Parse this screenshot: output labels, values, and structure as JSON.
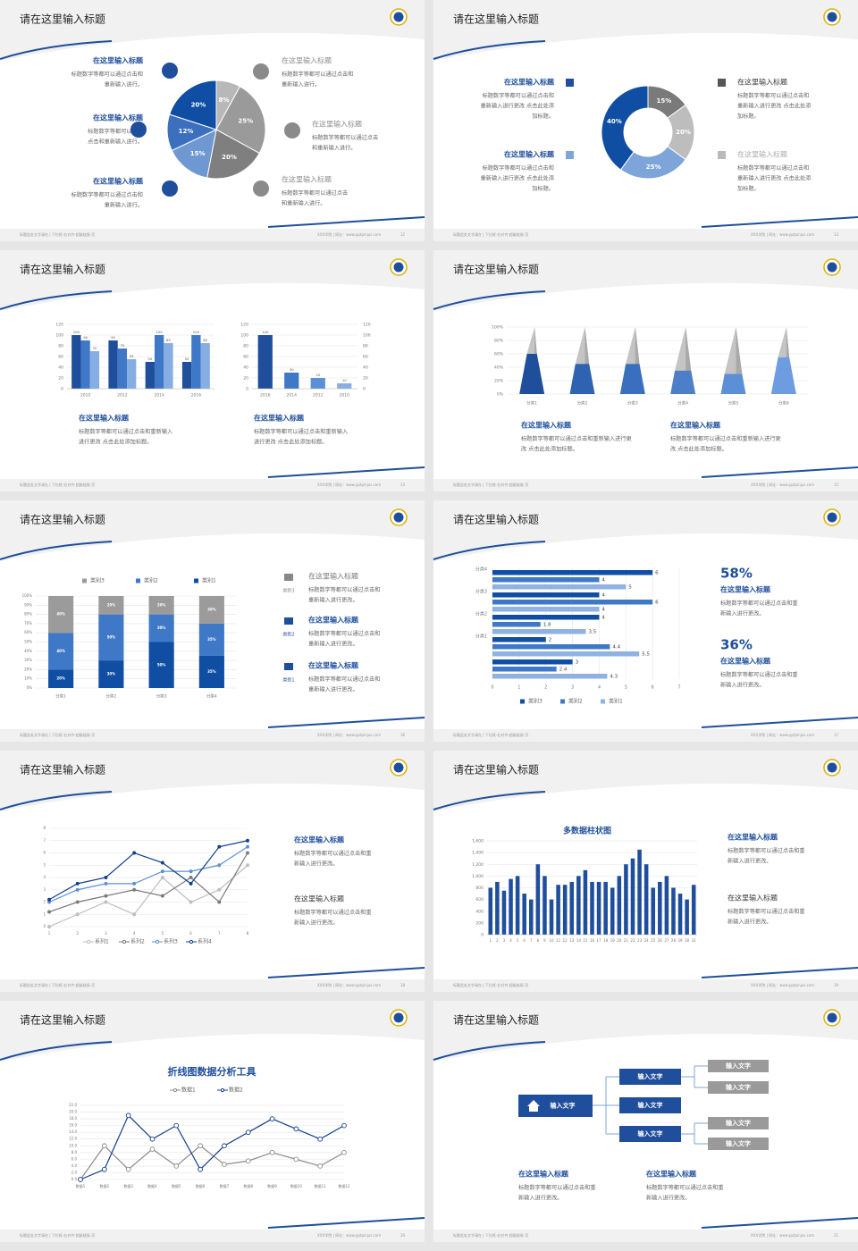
{
  "footer": {
    "left": "标题此处文字请在 | 下拉框-右对齐-超级链接-页",
    "right": "XXX学院 | 网址：www.pptpinjus.com"
  },
  "slides": [
    {
      "title": "请在这里输入标题",
      "page": "12",
      "items": [
        {
          "title": "在这里输入标题",
          "lines": [
            "标题数字等都可以通过点击和",
            "重新输入进行。"
          ]
        },
        {
          "title": "在这里输入标题",
          "lines": [
            "标题数字等都可以通过",
            "点击和重新输入进行。"
          ]
        },
        {
          "title": "在这里输入标题",
          "lines": [
            "标题数字等都可以通过点击和",
            "重新输入进行。"
          ]
        },
        {
          "title": "在这里输入标题",
          "lines": [
            "标题数字等都可以通过点击和",
            "重新输入进行。"
          ]
        },
        {
          "title": "在这里输入标题",
          "lines": [
            "标题数字等都可以通过点击",
            "和重新输入进行。"
          ]
        },
        {
          "title": "在这里输入标题",
          "lines": [
            "标题数字等都可以通过点击",
            "和重新输入进行。"
          ]
        }
      ]
    },
    {
      "title": "请在这里输入标题",
      "page": "13",
      "items": [
        {
          "title": "在这里输入标题",
          "lines": [
            "标题数字等都可以通过点击和",
            "重新输入进行更改 点击此处添",
            "加标题。"
          ]
        },
        {
          "title": "在这里输入标题",
          "lines": [
            "标题数字等都可以通过点击和",
            "重新输入进行更改 点击此处添",
            "加标题。"
          ]
        },
        {
          "title": "在这里输入标题",
          "lines": [
            "标题数字等都可以通过点击和",
            "重新输入进行更改 点击此处添",
            "加标题。"
          ]
        },
        {
          "title": "在这里输入标题",
          "lines": [
            "标题数字等都可以通过点击和",
            "重新输入进行更改 点击此处添",
            "加标题。"
          ]
        }
      ]
    },
    {
      "title": "请在这里输入标题",
      "page": "14",
      "items": [
        {
          "title": "在这里输入标题",
          "lines": [
            "标题数字等都可以通过点击和重新输入",
            "进行更改 点击此处添加标题。"
          ]
        },
        {
          "title": "在这里输入标题",
          "lines": [
            "标题数字等都可以通过点击和重新输入",
            "进行更改 点击此处添加标题。"
          ]
        }
      ]
    },
    {
      "title": "请在这里输入标题",
      "page": "15",
      "items": [
        {
          "title": "在这里输入标题",
          "lines": [
            "标题数字等都可以通过点击和重新输入进行更",
            "改 点击此处添加标题。"
          ]
        },
        {
          "title": "在这里输入标题",
          "lines": [
            "标题数字等都可以通过点击和重新输入进行更",
            "改 点击此处添加标题。"
          ]
        }
      ]
    },
    {
      "title": "请在这里输入标题",
      "page": "16",
      "items": [
        {
          "label": "类别3",
          "title": "在这里输入标题",
          "lines": [
            "标题数字等都可以通过点击和",
            "重新输入进行更改。"
          ]
        },
        {
          "label": "类别2",
          "title": "在这里输入标题",
          "lines": [
            "标题数字等都可以通过点击和",
            "重新输入进行更改。"
          ]
        },
        {
          "label": "类别1",
          "title": "在这里输入标题",
          "lines": [
            "标题数字等都可以通过点击和",
            "重新输入进行更改。"
          ]
        }
      ]
    },
    {
      "title": "请在这里输入标题",
      "page": "17",
      "items": [
        {
          "stat": "58%",
          "title": "在这里输入标题",
          "lines": [
            "标题数字等都可以通过点击和重",
            "新输入进行更改。"
          ]
        },
        {
          "stat": "36%",
          "title": "在这里输入标题",
          "lines": [
            "标题数字等都可以通过点击和重",
            "新输入进行更改。"
          ]
        }
      ]
    },
    {
      "title": "请在这里输入标题",
      "page": "18",
      "items": [
        {
          "title": "在这里输入标题",
          "lines": [
            "标题数字等都可以通过点击和重",
            "新输入进行更改。"
          ]
        },
        {
          "title": "在这里输入标题",
          "lines": [
            "标题数字等都可以通过点击和重",
            "新输入进行更改。"
          ]
        }
      ]
    },
    {
      "title": "请在这里输入标题",
      "page": "19",
      "items": [
        {
          "title": "在这里输入标题",
          "lines": [
            "标题数字等都可以通过点击和重",
            "新输入进行更改。"
          ]
        },
        {
          "title": "在这里输入标题",
          "lines": [
            "标题数字等都可以通过点击和重",
            "新输入进行更改。"
          ]
        }
      ]
    },
    {
      "title": "请在这里输入标题",
      "page": "20",
      "items": []
    },
    {
      "title": "请在这里输入标题",
      "page": "21",
      "items": [
        {
          "title": "在这里输入标题",
          "lines": [
            "标题数字等都可以通过点击和重",
            "新输入进行更改。"
          ]
        },
        {
          "title": "在这里输入标题",
          "lines": [
            "标题数字等都可以通过点击和重",
            "新输入进行更改。"
          ]
        }
      ],
      "nodes": [
        {
          "label": "输入文字"
        },
        {
          "label": "输入文字"
        },
        {
          "label": "输入文字"
        },
        {
          "label": "输入文字"
        },
        {
          "label": "输入文字"
        },
        {
          "label": "输入文字"
        },
        {
          "label": "输入文字"
        },
        {
          "label": "输入文字"
        }
      ]
    }
  ],
  "chart_data": [
    {
      "type": "pie",
      "values": [
        8,
        25,
        20,
        15,
        12,
        20
      ],
      "value_labels": [
        "8%",
        "25%",
        "20%",
        "15%",
        "12%",
        "20%"
      ],
      "colors": [
        "#b8b8b8",
        "#9a9a9a",
        "#7f7f7f",
        "#6f98d3",
        "#3c6fbd",
        "#0f4ea3"
      ]
    },
    {
      "type": "donut",
      "values": [
        15,
        20,
        25,
        40
      ],
      "value_labels": [
        "15%",
        "20%",
        "25%",
        "40%"
      ],
      "colors": [
        "#7a7a7a",
        "#bdbdbd",
        "#7ea5da",
        "#0f4ea3"
      ]
    },
    {
      "type": "bar",
      "categories": [
        "2010",
        "2012",
        "2014",
        "2016"
      ],
      "series": [
        {
          "color": "#1f4e9c",
          "values": [
            100,
            90,
            50,
            50
          ]
        },
        {
          "color": "#3f78c6",
          "values": [
            90,
            75,
            100,
            100
          ]
        },
        {
          "color": "#86aee3",
          "values": [
            70,
            55,
            85,
            85
          ]
        }
      ],
      "ylim": [
        0,
        120
      ],
      "yticks": [
        0,
        20,
        40,
        60,
        80,
        100,
        120
      ],
      "grid": true
    },
    {
      "type": "bar",
      "categories": [
        "2016",
        "2014",
        "2012",
        "2010"
      ],
      "values": [
        100,
        30,
        20,
        10
      ],
      "colors": [
        "#1f4e9c",
        "#3f78c6",
        "#5b8fd6",
        "#86aee3"
      ],
      "ylim": [
        0,
        120
      ],
      "yticks": [
        0,
        20,
        40,
        60,
        80,
        100,
        120
      ],
      "y2lim": [
        0,
        120
      ],
      "y2ticks": [
        0,
        20,
        40,
        60,
        80,
        100,
        120
      ],
      "grid": true
    },
    {
      "type": "pyramid",
      "categories": [
        "分类1",
        "分类2",
        "分类3",
        "分类4",
        "分类5",
        "分类6"
      ],
      "values": [
        60,
        45,
        45,
        35,
        30,
        55
      ],
      "colors": [
        "#1f4e9c",
        "#2f62b0",
        "#3a6fbf",
        "#4d7fc9",
        "#5b8fd6",
        "#6d9de0"
      ],
      "ylim": [
        0,
        100
      ],
      "yticks": [
        {
          "value": 0,
          "label": "0%"
        },
        {
          "value": 20,
          "label": "20%"
        },
        {
          "value": 40,
          "label": "40%"
        },
        {
          "value": 60,
          "label": "60%"
        },
        {
          "value": 80,
          "label": "80%"
        },
        {
          "value": 100,
          "label": "100%"
        }
      ],
      "grid": true
    },
    {
      "type": "stacked_bar",
      "categories": [
        "分类1",
        "分类2",
        "分类3",
        "分类4"
      ],
      "series": [
        {
          "name": "类别1",
          "color": "#0f4ea3",
          "values": [
            20,
            30,
            50,
            35
          ],
          "value_labels": [
            "20%",
            "30%",
            "50%",
            "35%"
          ]
        },
        {
          "name": "类别2",
          "color": "#3f78c6",
          "values": [
            40,
            50,
            30,
            35
          ],
          "value_labels": [
            "40%",
            "50%",
            "30%",
            "35%"
          ]
        },
        {
          "name": "类别3",
          "color": "#9b9b9b",
          "values": [
            40,
            20,
            20,
            30
          ],
          "value_labels": [
            "40%",
            "20%",
            "20%",
            "30%"
          ]
        }
      ],
      "ylim": [
        0,
        100
      ],
      "yticks": [
        {
          "value": 0,
          "label": "0%"
        },
        {
          "value": 10,
          "label": "10%"
        },
        {
          "value": 20,
          "label": "20%"
        },
        {
          "value": 30,
          "label": "30%"
        },
        {
          "value": 40,
          "label": "40%"
        },
        {
          "value": 50,
          "label": "50%"
        },
        {
          "value": 60,
          "label": "60%"
        },
        {
          "value": 70,
          "label": "70%"
        },
        {
          "value": 80,
          "label": "80%"
        },
        {
          "value": 90,
          "label": "90%"
        },
        {
          "value": 100,
          "label": "100%"
        }
      ],
      "grid": true
    },
    {
      "type": "hbar",
      "categories": [
        null,
        "分类1",
        "分类2",
        "分类3",
        "分类4"
      ],
      "series": [
        {
          "name": "类别3",
          "color": "#0f4ea3",
          "values": [
            3,
            2,
            4,
            4,
            6
          ]
        },
        {
          "name": "类别2",
          "color": "#3f78c6",
          "values": [
            2.4,
            4.4,
            1.8,
            6,
            4
          ]
        },
        {
          "name": "类别1",
          "color": "#8fb2e3",
          "values": [
            4.3,
            5.5,
            3.5,
            4,
            5
          ]
        }
      ],
      "xlim": [
        0,
        7
      ],
      "xticks": [
        0,
        1,
        2,
        3,
        4,
        5,
        6,
        7
      ],
      "grid": true
    },
    {
      "type": "line",
      "categories": [
        "1",
        "2",
        "3",
        "4",
        "5",
        "6",
        "7",
        "8"
      ],
      "series": [
        {
          "name": "系列1",
          "color": "#bdbdbd",
          "values": [
            0,
            1,
            2,
            1,
            4,
            2,
            3,
            5
          ]
        },
        {
          "name": "系列2",
          "color": "#7a7a7a",
          "values": [
            1.2,
            2,
            2.5,
            3,
            2.5,
            4,
            2,
            6
          ]
        },
        {
          "name": "系列3",
          "color": "#5b8fd6",
          "values": [
            2,
            3,
            3.5,
            3.5,
            4.5,
            4.5,
            5,
            6.5
          ]
        },
        {
          "name": "系列4",
          "color": "#123f8c",
          "values": [
            2.2,
            3.5,
            4,
            6,
            5.2,
            3.5,
            6.5,
            7
          ]
        }
      ],
      "ylim": [
        0,
        8
      ],
      "yticks": [
        0,
        1,
        2,
        3,
        4,
        5,
        6,
        7,
        8
      ],
      "grid": true
    },
    {
      "type": "bar",
      "title": "多数据柱状图",
      "categories": [
        "1",
        "2",
        "3",
        "4",
        "5",
        "6",
        "7",
        "8",
        "9",
        "10",
        "11",
        "12",
        "13",
        "14",
        "15",
        "16",
        "17",
        "18",
        "19",
        "20",
        "21",
        "22",
        "23",
        "24",
        "25",
        "26",
        "27",
        "28",
        "29",
        "30",
        "31"
      ],
      "values": [
        800,
        900,
        750,
        950,
        1000,
        700,
        600,
        1200,
        1000,
        600,
        850,
        850,
        900,
        1000,
        1100,
        900,
        900,
        900,
        800,
        1000,
        1200,
        1300,
        1450,
        1200,
        800,
        900,
        1000,
        800,
        700,
        600,
        850
      ],
      "color": "#1f4e9c",
      "ylim": [
        0,
        1600
      ],
      "yticks": [
        0,
        200,
        400,
        600,
        800,
        {
          "value": 1000,
          "label": "1,000"
        },
        {
          "value": 1200,
          "label": "1,200"
        },
        {
          "value": 1400,
          "label": "1,400"
        },
        {
          "value": 1600,
          "label": "1,600"
        }
      ],
      "grid": true
    },
    {
      "type": "line",
      "title": "折线图数据分析工具",
      "categories": [
        "数据1",
        "数据2",
        "数据3",
        "数据4",
        "数据5",
        "数据6",
        "数据7",
        "数据8",
        "数据9",
        "数据10",
        "数据11",
        "数据12"
      ],
      "series": [
        {
          "name": "数据1",
          "color": "#8a8a8a",
          "values": [
            0,
            10,
            3,
            9,
            4,
            10,
            4.5,
            5.5,
            8,
            6,
            4,
            8
          ]
        },
        {
          "name": "数据2",
          "color": "#123f8c",
          "values": [
            0,
            3,
            19,
            12,
            16,
            3,
            10,
            14,
            18,
            15,
            12,
            16
          ]
        }
      ],
      "ylim": [
        0,
        22
      ],
      "yticks": [
        {
          "value": 0,
          "label": "0.0"
        },
        {
          "value": 2,
          "label": "2.0"
        },
        {
          "value": 4,
          "label": "4.0"
        },
        {
          "value": 6,
          "label": "6.0"
        },
        {
          "value": 8,
          "label": "8.0"
        },
        {
          "value": 10,
          "label": "10.0"
        },
        {
          "value": 12,
          "label": "12.0"
        },
        {
          "value": 14,
          "label": "14.0"
        },
        {
          "value": 16,
          "label": "16.0"
        },
        {
          "value": 18,
          "label": "18.0"
        },
        {
          "value": 20,
          "label": "20.0"
        },
        {
          "value": 22,
          "label": "22.0"
        }
      ],
      "grid": true
    }
  ]
}
